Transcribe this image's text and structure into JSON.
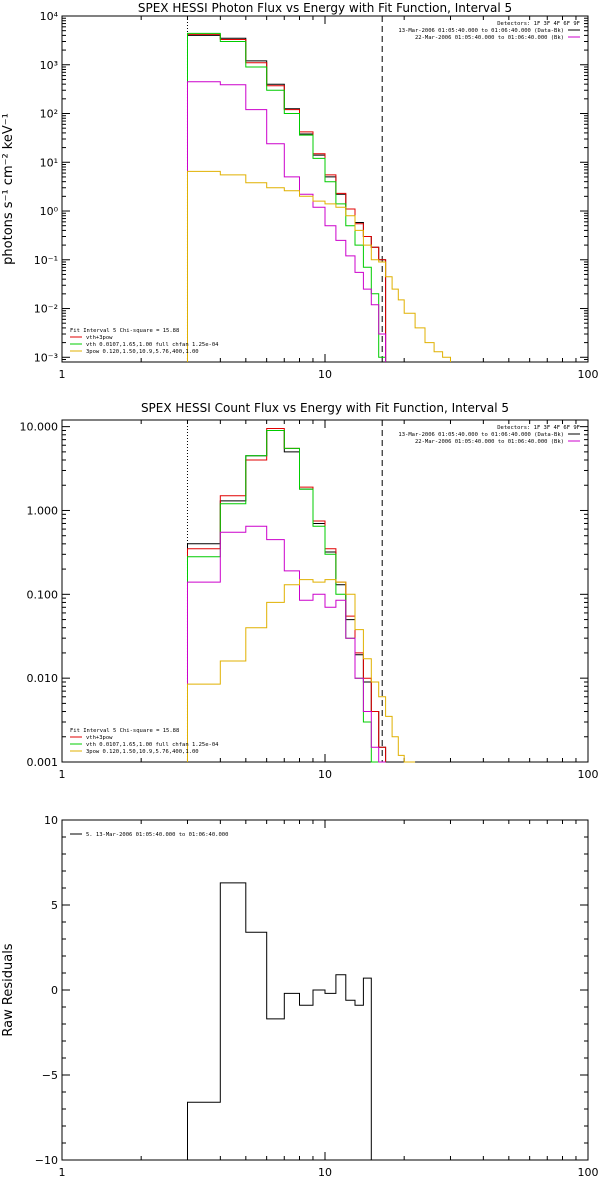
{
  "colors": {
    "black": "#000000",
    "red": "#e00000",
    "green": "#00cc00",
    "magenta": "#cc00cc",
    "yellow": "#e0b000"
  },
  "chart_data": [
    {
      "type": "line",
      "title": "SPEX HESSI Photon Flux vs Energy with Fit Function, Interval 5",
      "xlabel": "",
      "ylabel": "photons s⁻¹ cm⁻² keV⁻¹",
      "xscale": "log",
      "yscale": "log",
      "xlim": [
        1,
        100
      ],
      "ylim": [
        0.0008,
        10000
      ],
      "x_ticks": [
        1,
        10,
        100
      ],
      "x_tick_labels": [
        "1",
        "10",
        "100"
      ],
      "y_ticks": [
        0.001,
        0.01,
        0.1,
        1,
        10,
        100,
        1000,
        10000
      ],
      "y_tick_labels": [
        "10⁻³",
        "10⁻²",
        "10⁻¹",
        "10⁰",
        "10¹",
        "10²",
        "10³",
        "10⁴"
      ],
      "vlines": [
        {
          "x": 3.0,
          "style": "dotted"
        },
        {
          "x": 16.5,
          "style": "dashed"
        }
      ],
      "edges": [
        3.0,
        4.0,
        5.0,
        6.0,
        7.0,
        8.0,
        9.0,
        10.0,
        11.0,
        12.0,
        13.0,
        14.0,
        15.0,
        16.0,
        17.0,
        18.0,
        19.0,
        20.0,
        22.0,
        24.0,
        26.0,
        28.0,
        30.0
      ],
      "series": [
        {
          "color": "black",
          "values": [
            4000,
            3500,
            1200,
            400,
            125,
            38,
            14,
            5,
            2.2,
            1.1,
            0.58,
            0.3,
            0.18,
            0.1
          ]
        },
        {
          "color": "red",
          "values": [
            4200,
            3300,
            1100,
            370,
            120,
            42,
            15,
            5.5,
            2.3,
            1.1,
            0.55,
            0.3,
            0.18,
            0.1
          ]
        },
        {
          "color": "green",
          "values": [
            4400,
            3000,
            900,
            300,
            100,
            36,
            12,
            4,
            1.4,
            0.5,
            0.2,
            0.07,
            0.02,
            0.001
          ]
        },
        {
          "color": "magenta",
          "values": [
            450,
            390,
            120,
            24,
            5,
            2.2,
            1.2,
            0.5,
            0.25,
            0.12,
            0.055,
            0.025,
            0.012,
            0.003
          ]
        },
        {
          "color": "yellow",
          "values": [
            6.5,
            5.5,
            3.8,
            3,
            2.6,
            2,
            1.6,
            1.4,
            1.2,
            0.8,
            0.4,
            0.2,
            0.1,
            0.09,
            0.045,
            0.025,
            0.015,
            0.008,
            0.004,
            0.002,
            0.0013,
            0.001
          ]
        }
      ],
      "info": {
        "detectors": "Detectors: 1F 3F 4F 6F 9F",
        "lines": [
          {
            "text": "13-Mar-2006 01:05:40.000 to 01:06:40.000 (Data-Bk)",
            "color": "black"
          },
          {
            "text": "22-Mar-2006 01:05:40.000 to 01:06:40.000 (Bk)",
            "color": "magenta"
          }
        ]
      },
      "legend": {
        "header": "Fit Interval 5   Chi-square = 15.88",
        "entries": [
          {
            "text": "vth+3pow",
            "color": "red"
          },
          {
            "text": "vth 0.0107,1.65,1.00  full chfan 1.25e-04",
            "color": "green"
          },
          {
            "text": "3pow 0.120,1.50,10.9,5.76,400,1.00",
            "color": "yellow"
          }
        ]
      }
    },
    {
      "type": "line",
      "title": "SPEX HESSI Count Flux vs Energy with Fit Function, Interval 5",
      "xlabel": "",
      "ylabel": "",
      "xscale": "log",
      "yscale": "log",
      "xlim": [
        1,
        100
      ],
      "ylim": [
        0.001,
        12
      ],
      "x_ticks": [
        1,
        10,
        100
      ],
      "x_tick_labels": [
        "1",
        "10",
        "100"
      ],
      "y_ticks": [
        0.001,
        0.01,
        0.1,
        1,
        10
      ],
      "y_tick_labels": [
        "0.001",
        "0.010",
        "0.100",
        "1.000",
        "10.000"
      ],
      "vlines": [
        {
          "x": 3.0,
          "style": "dotted"
        },
        {
          "x": 16.5,
          "style": "dashed"
        }
      ],
      "edges": [
        3.0,
        4.0,
        5.0,
        6.0,
        7.0,
        8.0,
        9.0,
        10.0,
        11.0,
        12.0,
        13.0,
        14.0,
        15.0,
        16.0,
        17.0,
        18.0,
        19.0,
        20.0,
        22.0
      ],
      "series": [
        {
          "color": "black",
          "values": [
            0.4,
            1.3,
            4.5,
            9,
            5,
            1.8,
            0.7,
            0.32,
            0.13,
            0.05,
            0.019,
            0.009,
            0.004,
            0.0015
          ]
        },
        {
          "color": "red",
          "values": [
            0.35,
            1.5,
            4,
            9.5,
            5.5,
            1.9,
            0.75,
            0.35,
            0.14,
            0.055,
            0.02,
            0.01,
            0.004,
            0.0015
          ]
        },
        {
          "color": "green",
          "values": [
            0.28,
            1.2,
            4.5,
            9,
            5.5,
            1.8,
            0.65,
            0.3,
            0.1,
            0.03,
            0.01,
            0.003,
            0.001,
            0.001
          ]
        },
        {
          "color": "magenta",
          "values": [
            0.14,
            0.55,
            0.65,
            0.45,
            0.19,
            0.085,
            0.1,
            0.07,
            0.085,
            0.03,
            0.01,
            0.004,
            0.0015,
            0.001
          ]
        },
        {
          "color": "yellow",
          "values": [
            0.0085,
            0.016,
            0.04,
            0.08,
            0.13,
            0.15,
            0.14,
            0.15,
            0.14,
            0.1,
            0.038,
            0.017,
            0.009,
            0.006,
            0.0035,
            0.002,
            0.0012,
            0.001
          ]
        }
      ],
      "info": {
        "detectors": "Detectors: 1F 3F 4F 6F 9F",
        "lines": [
          {
            "text": "13-Mar-2006 01:05:40.000 to 01:06:40.000 (Data-Bk)",
            "color": "black"
          },
          {
            "text": "22-Mar-2006 01:05:40.000 to 01:06:40.000 (Bk)",
            "color": "magenta"
          }
        ]
      },
      "legend": {
        "header": "Fit Interval 5   Chi-square = 15.88",
        "entries": [
          {
            "text": "vth+3pow",
            "color": "red"
          },
          {
            "text": "vth 0.0107,1.65,1.00  full chfan 1.25e-04",
            "color": "green"
          },
          {
            "text": "3pow 0.120,1.50,10.9,5.76,400,1.00",
            "color": "yellow"
          }
        ]
      }
    },
    {
      "type": "line",
      "title": "",
      "xlabel": "",
      "ylabel": "Raw Residuals",
      "xscale": "log",
      "yscale": "linear",
      "xlim": [
        1,
        100
      ],
      "ylim": [
        -10,
        10
      ],
      "x_ticks": [
        1,
        10,
        100
      ],
      "x_tick_labels": [
        "1",
        "10",
        "100"
      ],
      "y_ticks": [
        -10,
        -5,
        0,
        5,
        10
      ],
      "y_tick_labels": [
        "−10",
        "−5",
        "0",
        "5",
        "10"
      ],
      "edges": [
        3.0,
        4.0,
        5.0,
        6.0,
        7.0,
        8.0,
        9.0,
        10.0,
        11.0,
        12.0,
        13.0,
        14.0,
        15.0,
        16.0,
        17.0
      ],
      "series": [
        {
          "color": "black",
          "values": [
            -6.6,
            6.3,
            3.4,
            -1.7,
            -0.2,
            -0.9,
            0.0,
            -0.2,
            0.9,
            -0.6,
            -0.9,
            0.7
          ]
        }
      ],
      "legend": {
        "header": "",
        "entries": [
          {
            "text": "5. 13-Mar-2006 01:05:40.000 to 01:06:40.000",
            "color": "black"
          }
        ]
      }
    }
  ]
}
